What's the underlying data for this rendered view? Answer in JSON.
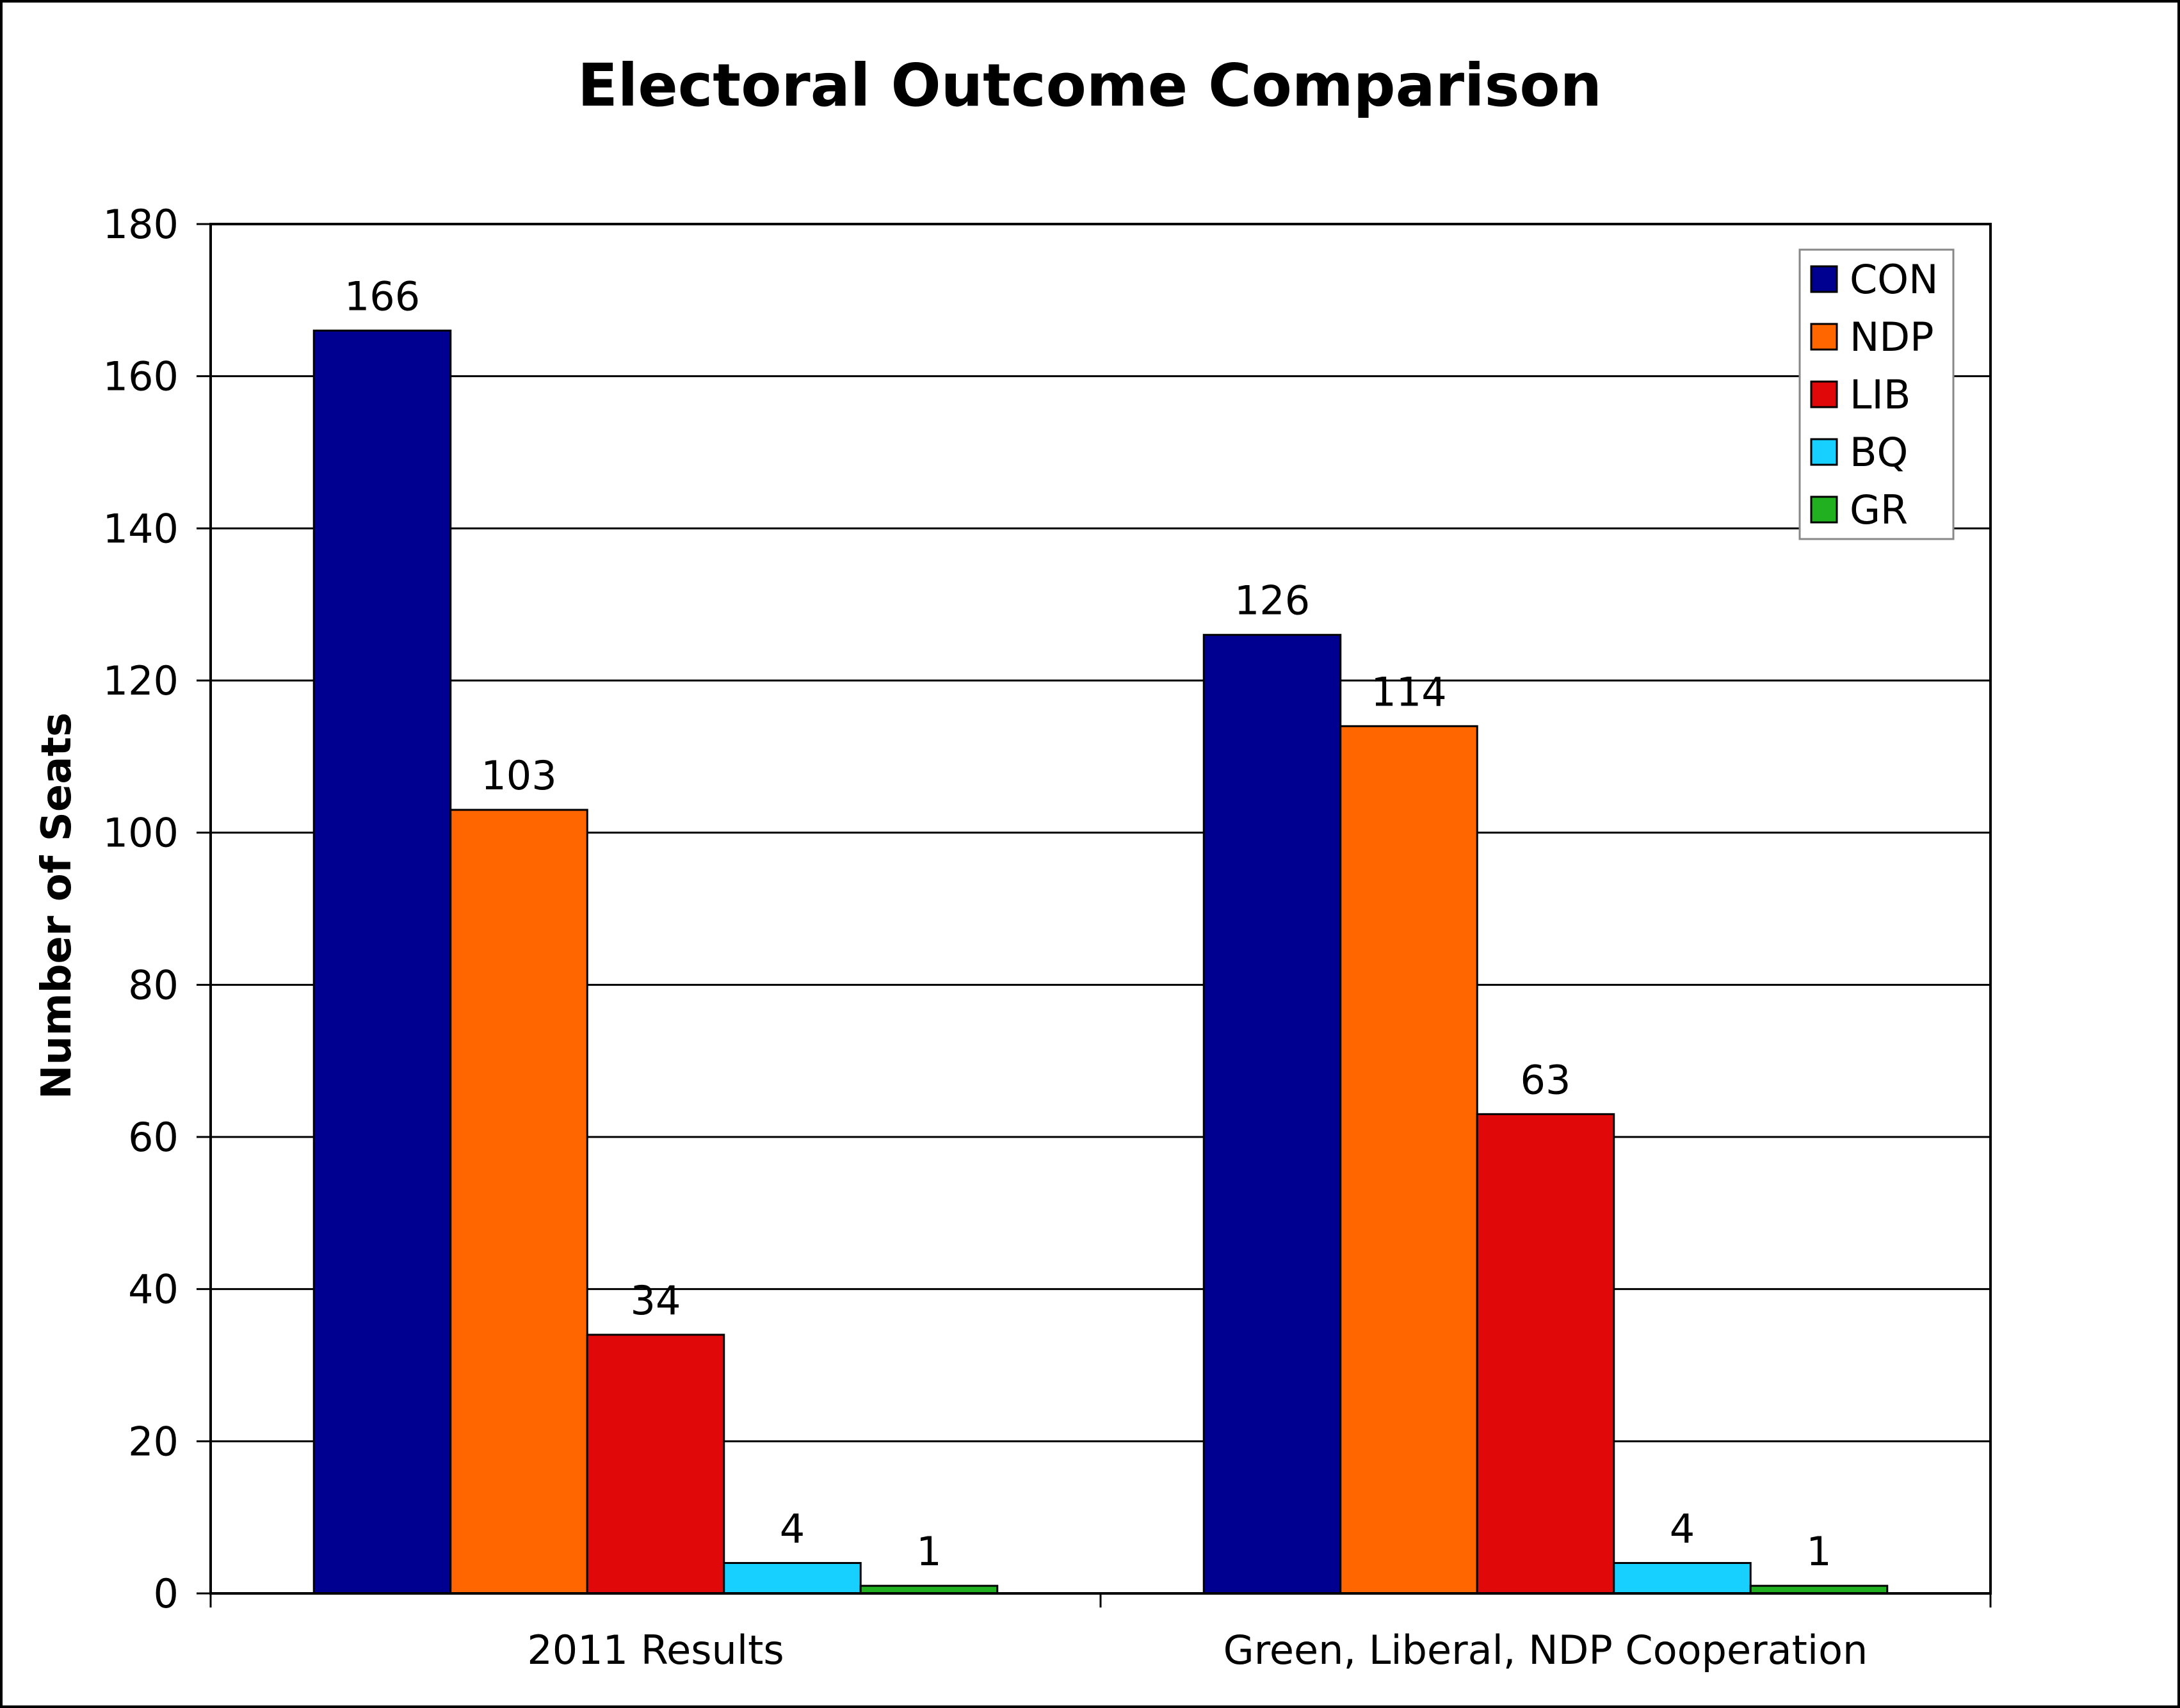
{
  "chart_data": {
    "type": "bar",
    "title": "Electoral Outcome Comparison",
    "xlabel": "",
    "ylabel": "Number of Seats",
    "ylim": [
      0,
      180
    ],
    "yticks": [
      0,
      20,
      40,
      60,
      80,
      100,
      120,
      140,
      160,
      180
    ],
    "grid": true,
    "legend": "top-right",
    "categories": [
      "2011 Results",
      "Green, Liberal, NDP Cooperation"
    ],
    "series": [
      {
        "name": "CON",
        "color": "#000090",
        "values": [
          166,
          126
        ]
      },
      {
        "name": "NDP",
        "color": "#FF6600",
        "values": [
          103,
          114
        ]
      },
      {
        "name": "LIB",
        "color": "#E00808",
        "values": [
          34,
          63
        ]
      },
      {
        "name": "BQ",
        "color": "#18D0FF",
        "values": [
          4,
          4
        ]
      },
      {
        "name": "GR",
        "color": "#20B020",
        "values": [
          1,
          1
        ]
      }
    ]
  }
}
